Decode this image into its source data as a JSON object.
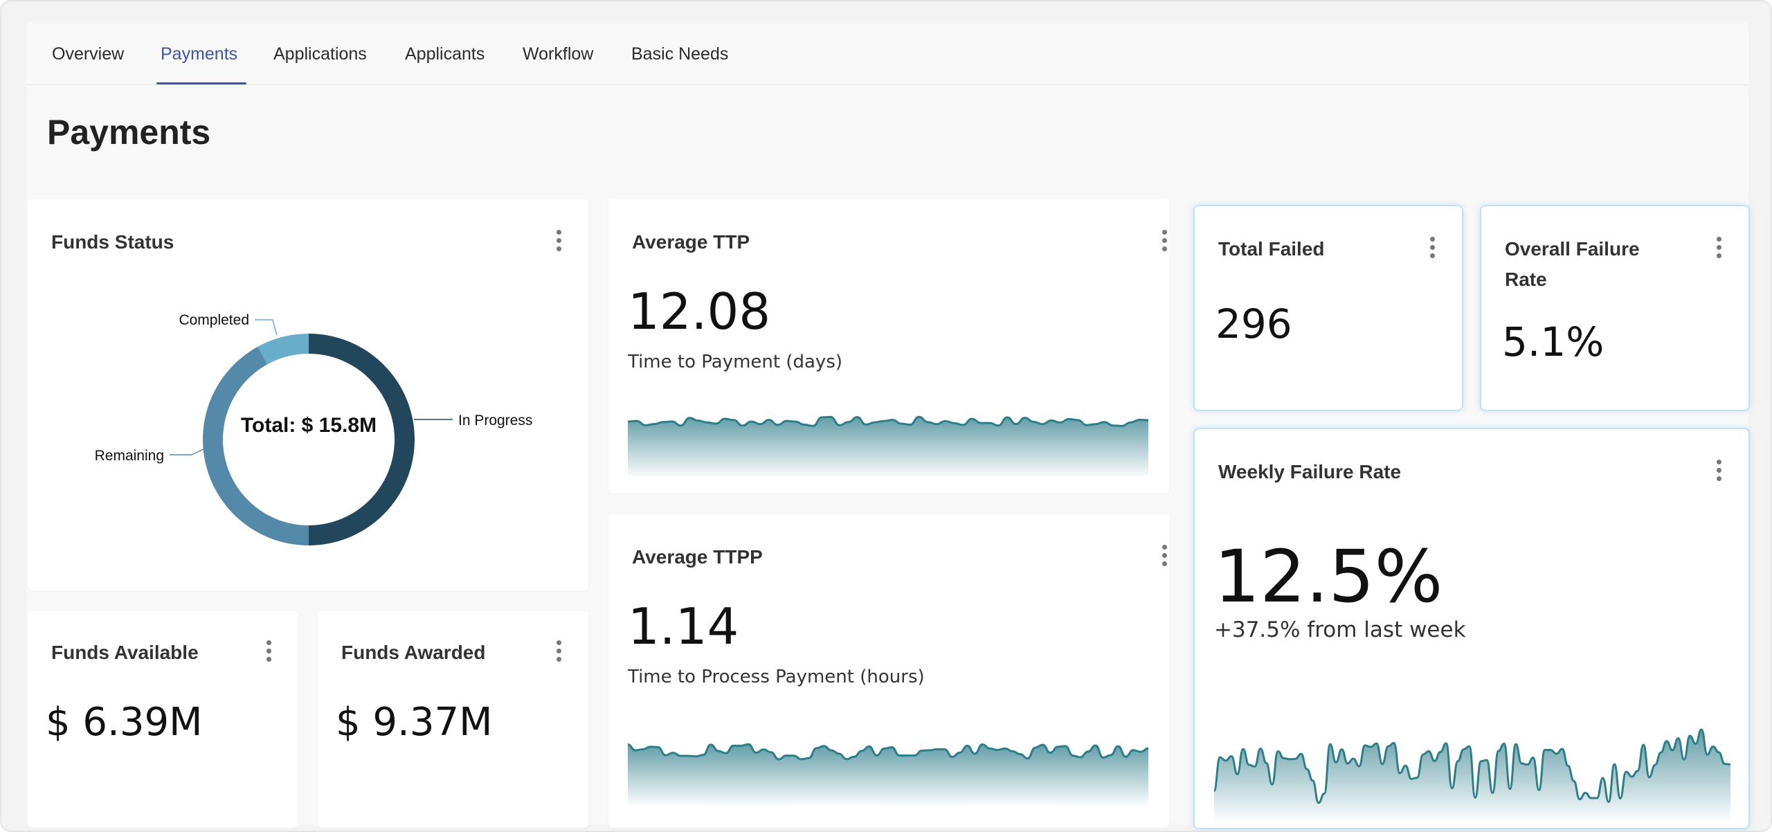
{
  "tabs": [
    {
      "label": "Overview",
      "active": false
    },
    {
      "label": "Payments",
      "active": true
    },
    {
      "label": "Applications",
      "active": false
    },
    {
      "label": "Applicants",
      "active": false
    },
    {
      "label": "Workflow",
      "active": false
    },
    {
      "label": "Basic Needs",
      "active": false
    }
  ],
  "page": {
    "title": "Payments"
  },
  "colors": {
    "accent": "#3d55a5",
    "sparkline": "#2e7d8a",
    "donut_in_progress": "#22465c",
    "donut_remaining": "#5589aa",
    "donut_completed": "#68aecb"
  },
  "funds_status": {
    "title": "Funds Status",
    "center_label": "Total: $ 15.8M",
    "chart_data": {
      "type": "pie",
      "categories": [
        "In Progress",
        "Remaining",
        "Completed"
      ],
      "values": [
        50,
        42,
        8
      ],
      "title": "Funds Status"
    }
  },
  "funds_available": {
    "title": "Funds Available",
    "value": "$ 6.39M"
  },
  "funds_awarded": {
    "title": "Funds Awarded",
    "value": "$ 9.37M"
  },
  "avg_ttp": {
    "title": "Average TTP",
    "value": "12.08",
    "label": "Time to Payment (days)"
  },
  "avg_ttpp": {
    "title": "Average TTPP",
    "value": "1.14",
    "label": "Time to Process Payment (hours)"
  },
  "total_failed": {
    "title": "Total Failed",
    "value": "296"
  },
  "overall_failure": {
    "title": "Overall Failure Rate",
    "value": "5.1%"
  },
  "weekly_failure": {
    "title": "Weekly Failure Rate",
    "value": "12.5%",
    "delta": "+37.5% from last week"
  }
}
